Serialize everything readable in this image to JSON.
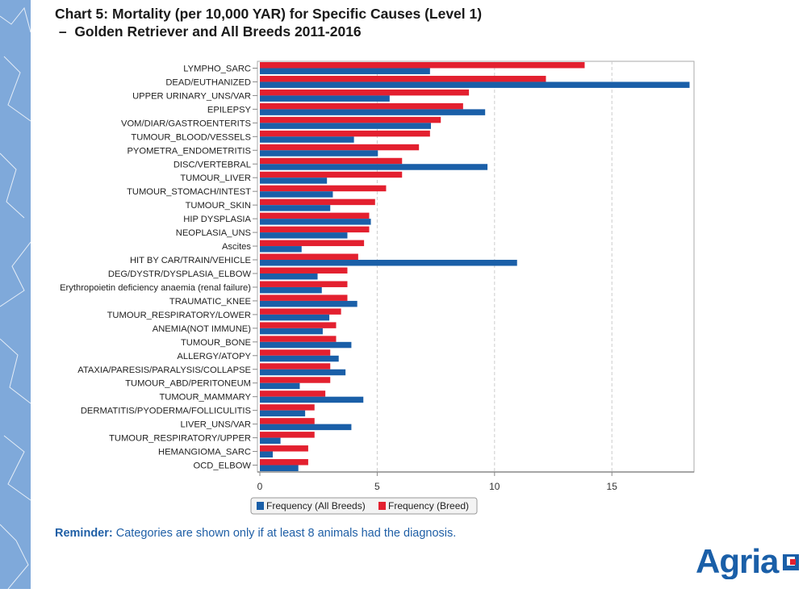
{
  "title_line1": "Chart 5: Mortality (per 10,000 YAR) for Specific Causes (Level 1)",
  "title_line2": " –  Golden Retriever and All Breeds 2011-2016",
  "reminder_label": "Reminder:",
  "reminder_text": " Categories are shown only if at least 8 animals had the diagnosis.",
  "logo_text": "Agria",
  "colors": {
    "breed": "#e3202f",
    "all_breeds": "#1a5fa8",
    "strip": "#7fa9da"
  },
  "chart_data": {
    "type": "bar",
    "orientation": "horizontal",
    "title": "Chart 5: Mortality (per 10,000 YAR) for Specific Causes (Level 1) – Golden Retriever and All Breeds 2011-2016",
    "xlim": [
      0,
      18.5
    ],
    "xticks": [
      0,
      5,
      10,
      15
    ],
    "grid": "vertical dashed",
    "legend": "bottom",
    "categories": [
      "LYMPHO_SARC",
      "DEAD/EUTHANIZED",
      "UPPER URINARY_UNS/VAR",
      "EPILEPSY",
      "VOM/DIAR/GASTROENTERITS",
      "TUMOUR_BLOOD/VESSELS",
      "PYOMETRA_ENDOMETRITIS",
      "DISC/VERTEBRAL",
      "TUMOUR_LIVER",
      "TUMOUR_STOMACH/INTEST",
      "TUMOUR_SKIN",
      "HIP DYSPLASIA",
      "NEOPLASIA_UNS",
      "Ascites",
      "HIT BY CAR/TRAIN/VEHICLE",
      "DEG/DYSTR/DYSPLASIA_ELBOW",
      "Erythropoietin deficiency anaemia (renal failure)",
      "TRAUMATIC_KNEE",
      "TUMOUR_RESPIRATORY/LOWER",
      "ANEMIA(NOT IMMUNE)",
      "TUMOUR_BONE",
      "ALLERGY/ATOPY",
      "ATAXIA/PARESIS/PARALYSIS/COLLAPSE",
      "TUMOUR_ABD/PERITONEUM",
      "TUMOUR_MAMMARY",
      "DERMATITIS/PYODERMA/FOLLICULITIS",
      "LIVER_UNS/VAR",
      "TUMOUR_RESPIRATORY/UPPER",
      "HEMANGIOMA_SARC",
      "OCD_ELBOW"
    ],
    "series": [
      {
        "name": "Frequency (Breed)",
        "values": [
          13.84,
          12.19,
          8.91,
          8.66,
          7.71,
          7.25,
          6.78,
          6.06,
          6.06,
          5.38,
          4.91,
          4.66,
          4.66,
          4.44,
          4.19,
          3.73,
          3.73,
          3.73,
          3.46,
          3.25,
          3.25,
          3.0,
          3.0,
          3.0,
          2.79,
          2.33,
          2.33,
          2.33,
          2.06,
          2.06
        ]
      },
      {
        "name": "Frequency (All Breeds)",
        "values": [
          7.25,
          18.31,
          5.53,
          9.6,
          7.29,
          4.01,
          5.03,
          9.7,
          2.86,
          3.11,
          3.0,
          4.73,
          3.73,
          1.78,
          10.96,
          2.46,
          2.64,
          4.15,
          2.96,
          2.68,
          3.9,
          3.36,
          3.65,
          1.7,
          4.41,
          1.93,
          3.9,
          0.88,
          0.55,
          1.64
        ]
      }
    ],
    "legend_entries": [
      "Frequency (All Breeds)",
      "Frequency (Breed)"
    ]
  }
}
